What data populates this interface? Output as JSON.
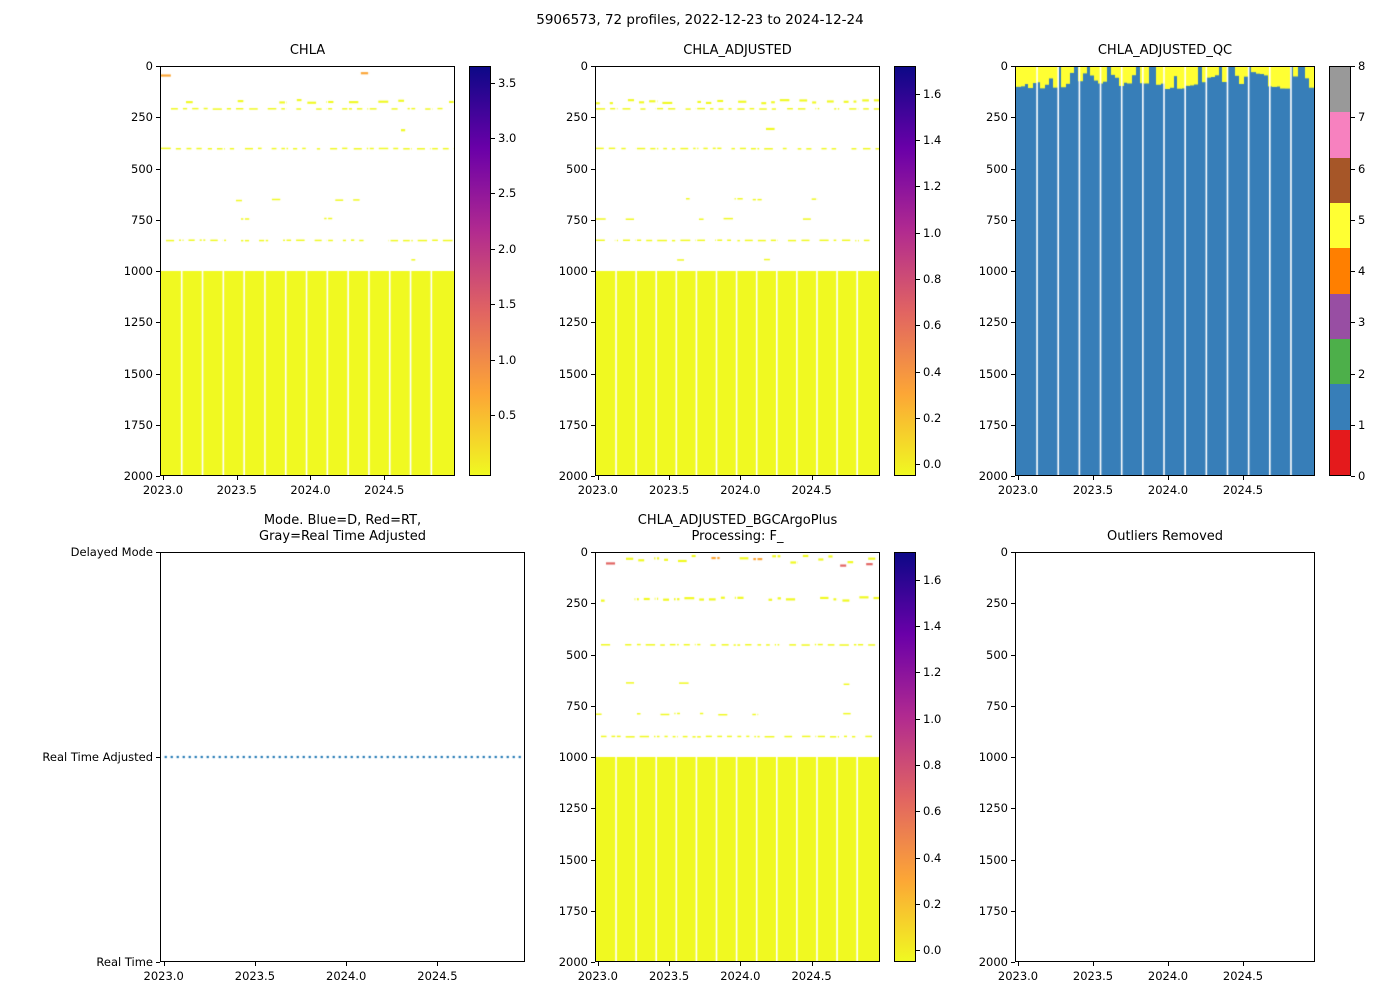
{
  "figure": {
    "title": "5906573, 72 profiles, 2022-12-23 to 2024-12-24"
  },
  "chart_data": [
    {
      "id": "chla",
      "type": "heatmap",
      "title": "CHLA",
      "xlim": [
        2022.98,
        2024.98
      ],
      "x_ticks": [
        "2023.0",
        "2023.5",
        "2024.0",
        "2024.5"
      ],
      "ylim": [
        0,
        2000
      ],
      "y_ticks": [
        "0",
        "250",
        "500",
        "750",
        "1000",
        "1250",
        "1500",
        "1750",
        "2000"
      ],
      "y_axis_inverted": true,
      "colorbar": {
        "kind": "continuous",
        "cmap": "plasma_r",
        "stops_bottom_to_top": [
          "#f0f921",
          "#fca636",
          "#e16462",
          "#b12a90",
          "#6a00a8",
          "#0d0887"
        ],
        "vmin": -0.05,
        "vmax": 3.65,
        "ticks": [
          "0.5",
          "1.0",
          "1.5",
          "2.0",
          "2.5",
          "3.0",
          "3.5"
        ]
      },
      "heatmap": {
        "base_color": "#f0f921",
        "solid_region": {
          "depth_from": 1000,
          "depth_to": 2000,
          "approx_value": 0.05
        },
        "column_gaps": [
          0.068,
          0.139,
          0.21,
          0.281,
          0.352,
          0.423,
          0.494,
          0.565,
          0.636,
          0.707,
          0.778,
          0.849,
          0.92
        ],
        "streak_bands": [
          {
            "depth": 35,
            "thickness": 45,
            "density": 0.035,
            "colors": [
              "#f0f921",
              "#fca636"
            ]
          },
          {
            "depth": 170,
            "thickness": 26,
            "density": 0.5,
            "colors": [
              "#f0f921"
            ]
          },
          {
            "depth": 205,
            "thickness": 10,
            "density": 0.65,
            "colors": [
              "#f0f921"
            ]
          },
          {
            "depth": 300,
            "thickness": 50,
            "density": 0.03,
            "colors": [
              "#f0f921"
            ]
          },
          {
            "depth": 400,
            "thickness": 10,
            "density": 0.8,
            "colors": [
              "#f0f921"
            ]
          },
          {
            "depth": 650,
            "thickness": 18,
            "density": 0.1,
            "colors": [
              "#f0f921"
            ]
          },
          {
            "depth": 745,
            "thickness": 12,
            "density": 0.05,
            "colors": [
              "#f0f921"
            ]
          },
          {
            "depth": 850,
            "thickness": 10,
            "density": 0.7,
            "colors": [
              "#f0f921"
            ]
          },
          {
            "depth": 945,
            "thickness": 10,
            "density": 0.06,
            "colors": [
              "#f0f921"
            ]
          }
        ]
      }
    },
    {
      "id": "chla_adjusted",
      "type": "heatmap",
      "title": "CHLA_ADJUSTED",
      "xlim": [
        2022.98,
        2024.98
      ],
      "x_ticks": [
        "2023.0",
        "2023.5",
        "2024.0",
        "2024.5"
      ],
      "ylim": [
        0,
        2000
      ],
      "y_ticks": [
        "0",
        "250",
        "500",
        "750",
        "1000",
        "1250",
        "1500",
        "1750",
        "2000"
      ],
      "y_axis_inverted": true,
      "colorbar": {
        "kind": "continuous",
        "cmap": "plasma_r",
        "stops_bottom_to_top": [
          "#f0f921",
          "#fca636",
          "#e16462",
          "#b12a90",
          "#6a00a8",
          "#0d0887"
        ],
        "vmin": -0.05,
        "vmax": 1.72,
        "ticks": [
          "0.0",
          "0.2",
          "0.4",
          "0.6",
          "0.8",
          "1.0",
          "1.2",
          "1.4",
          "1.6"
        ]
      },
      "heatmap": {
        "base_color": "#f0f921",
        "solid_region": {
          "depth_from": 1000,
          "depth_to": 2000,
          "approx_value": 0.02
        },
        "column_gaps": [
          0.068,
          0.139,
          0.21,
          0.281,
          0.352,
          0.423,
          0.494,
          0.565,
          0.636,
          0.707,
          0.778,
          0.849,
          0.92
        ],
        "streak_bands": [
          {
            "depth": 35,
            "thickness": 45,
            "density": 0.035,
            "colors": [
              "#f0f921",
              "#fca636"
            ]
          },
          {
            "depth": 170,
            "thickness": 26,
            "density": 0.5,
            "colors": [
              "#f0f921"
            ]
          },
          {
            "depth": 205,
            "thickness": 10,
            "density": 0.65,
            "colors": [
              "#f0f921"
            ]
          },
          {
            "depth": 300,
            "thickness": 50,
            "density": 0.03,
            "colors": [
              "#f0f921"
            ]
          },
          {
            "depth": 400,
            "thickness": 10,
            "density": 0.8,
            "colors": [
              "#f0f921"
            ]
          },
          {
            "depth": 650,
            "thickness": 18,
            "density": 0.1,
            "colors": [
              "#f0f921"
            ]
          },
          {
            "depth": 745,
            "thickness": 12,
            "density": 0.05,
            "colors": [
              "#f0f921"
            ]
          },
          {
            "depth": 850,
            "thickness": 10,
            "density": 0.7,
            "colors": [
              "#f0f921"
            ]
          },
          {
            "depth": 945,
            "thickness": 10,
            "density": 0.06,
            "colors": [
              "#f0f921"
            ]
          }
        ]
      }
    },
    {
      "id": "chla_adjusted_qc",
      "type": "qc-flags",
      "title": "CHLA_ADJUSTED_QC",
      "xlim": [
        2022.98,
        2024.98
      ],
      "x_ticks": [
        "2023.0",
        "2023.5",
        "2024.0",
        "2024.5"
      ],
      "ylim": [
        0,
        2000
      ],
      "y_ticks": [
        "0",
        "250",
        "500",
        "750",
        "1000",
        "1250",
        "1500",
        "1750",
        "2000"
      ],
      "y_axis_inverted": true,
      "colorbar": {
        "kind": "discrete",
        "cmap": "Set1",
        "segment_colors_bottom_to_top": [
          "#e41a1c",
          "#377eb8",
          "#4daf4a",
          "#984ea3",
          "#ff7f00",
          "#ffff33",
          "#a65628",
          "#f781bf",
          "#999999"
        ],
        "vmin": 0,
        "vmax": 8,
        "ticks": [
          "0",
          "1",
          "2",
          "3",
          "4",
          "5",
          "6",
          "7",
          "8"
        ]
      },
      "qc": {
        "n_profiles": 72,
        "main_flag": 1,
        "main_color": "#377eb8",
        "surface_flag": 5,
        "surface_color": "#ffff33",
        "surface_cap_depth_range": [
          25,
          110
        ],
        "cap_probability": 0.8,
        "column_gaps": [
          0.068,
          0.139,
          0.21,
          0.281,
          0.352,
          0.423,
          0.494,
          0.565,
          0.636,
          0.707,
          0.778,
          0.849,
          0.92
        ]
      }
    },
    {
      "id": "mode",
      "type": "categorical-line",
      "title": "Mode. Blue=D, Red=RT,\nGray=Real Time Adjusted",
      "xlim": [
        2022.98,
        2024.98
      ],
      "x_ticks": [
        "2023.0",
        "2023.5",
        "2024.0",
        "2024.5"
      ],
      "y_categories": [
        "Delayed Mode",
        "Real Time Adjusted",
        "Real Time"
      ],
      "series": [
        {
          "name": "mode",
          "linestyle": "dotted",
          "color": "#1f77b4",
          "category": "Real Time Adjusted",
          "x_start": 2023.0,
          "x_end": 2024.97
        }
      ]
    },
    {
      "id": "chla_adjusted_bgc",
      "type": "heatmap",
      "title": "CHLA_ADJUSTED_BGCArgoPlus\nProcessing: F_",
      "xlim": [
        2022.98,
        2024.98
      ],
      "x_ticks": [
        "2023.0",
        "2023.5",
        "2024.0",
        "2024.5"
      ],
      "ylim": [
        0,
        2000
      ],
      "y_ticks": [
        "0",
        "250",
        "500",
        "750",
        "1000",
        "1250",
        "1500",
        "1750",
        "2000"
      ],
      "y_axis_inverted": true,
      "colorbar": {
        "kind": "continuous",
        "cmap": "plasma_r",
        "stops_bottom_to_top": [
          "#f0f921",
          "#fca636",
          "#e16462",
          "#b12a90",
          "#6a00a8",
          "#0d0887"
        ],
        "vmin": -0.05,
        "vmax": 1.72,
        "ticks": [
          "0.0",
          "0.2",
          "0.4",
          "0.6",
          "0.8",
          "1.0",
          "1.2",
          "1.4",
          "1.6"
        ]
      },
      "heatmap": {
        "base_color": "#f0f921",
        "solid_region": {
          "depth_from": 1000,
          "depth_to": 2000,
          "approx_value": 0.02
        },
        "column_gaps": [
          0.068,
          0.139,
          0.21,
          0.281,
          0.352,
          0.423,
          0.494,
          0.565,
          0.636,
          0.707,
          0.778,
          0.849,
          0.92
        ],
        "streak_bands": [
          {
            "depth": 30,
            "thickness": 45,
            "density": 0.5,
            "colors": [
              "#f0f921",
              "#fca636"
            ]
          },
          {
            "depth": 55,
            "thickness": 30,
            "density": 0.06,
            "colors": [
              "#e16462"
            ]
          },
          {
            "depth": 225,
            "thickness": 28,
            "density": 0.55,
            "colors": [
              "#f0f921"
            ]
          },
          {
            "depth": 450,
            "thickness": 10,
            "density": 0.75,
            "colors": [
              "#f0f921"
            ]
          },
          {
            "depth": 640,
            "thickness": 16,
            "density": 0.06,
            "colors": [
              "#f0f921"
            ]
          },
          {
            "depth": 790,
            "thickness": 14,
            "density": 0.1,
            "colors": [
              "#f0f921"
            ]
          },
          {
            "depth": 900,
            "thickness": 10,
            "density": 0.7,
            "colors": [
              "#f0f921"
            ]
          }
        ]
      }
    },
    {
      "id": "outliers",
      "type": "empty",
      "title": "Outliers Removed",
      "xlim": [
        2022.98,
        2024.98
      ],
      "x_ticks": [
        "2023.0",
        "2023.5",
        "2024.0",
        "2024.5"
      ],
      "ylim": [
        0,
        2000
      ],
      "y_ticks": [
        "0",
        "250",
        "500",
        "750",
        "1000",
        "1250",
        "1500",
        "1750",
        "2000"
      ],
      "y_axis_inverted": true
    }
  ]
}
